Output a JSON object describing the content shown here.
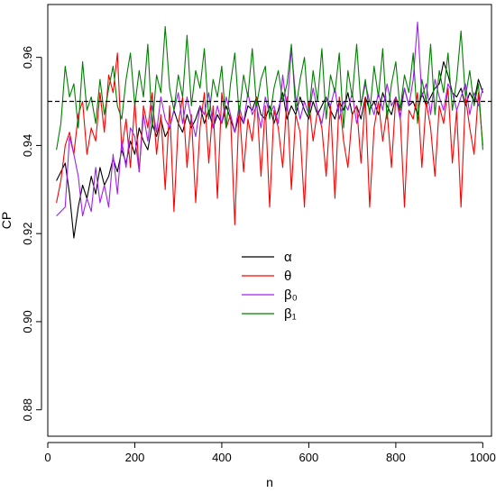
{
  "chart_data": {
    "type": "line",
    "title": "",
    "xlabel": "n",
    "ylabel": "CP",
    "xlim": [
      0,
      1020
    ],
    "ylim": [
      0.874,
      0.972
    ],
    "xticks": [
      0,
      200,
      400,
      600,
      800,
      1000
    ],
    "xtick_labels": [
      "0",
      "200",
      "400",
      "600",
      "800",
      "1000"
    ],
    "yticks": [
      0.88,
      0.9,
      0.92,
      0.94,
      0.96
    ],
    "ytick_labels": [
      "0.88",
      "0.90",
      "0.92",
      "0.94",
      "0.96"
    ],
    "grid": false,
    "legend_position": "center-left",
    "reference_line": {
      "y": 0.95,
      "style": "dashed",
      "color": "#000000"
    },
    "x": [
      20,
      30,
      40,
      50,
      60,
      70,
      80,
      90,
      100,
      110,
      120,
      130,
      140,
      150,
      160,
      170,
      180,
      190,
      200,
      210,
      220,
      230,
      240,
      250,
      260,
      270,
      280,
      290,
      300,
      310,
      320,
      330,
      340,
      350,
      360,
      370,
      380,
      390,
      400,
      410,
      420,
      430,
      440,
      450,
      460,
      470,
      480,
      490,
      500,
      510,
      520,
      530,
      540,
      550,
      560,
      570,
      580,
      590,
      600,
      610,
      620,
      630,
      640,
      650,
      660,
      670,
      680,
      690,
      700,
      710,
      720,
      730,
      740,
      750,
      760,
      770,
      780,
      790,
      800,
      810,
      820,
      830,
      840,
      850,
      860,
      870,
      880,
      890,
      900,
      910,
      920,
      930,
      940,
      950,
      960,
      970,
      980,
      990,
      1000
    ],
    "series": [
      {
        "name": "α",
        "color": "#000000",
        "values": [
          0.932,
          0.934,
          0.936,
          0.929,
          0.919,
          0.926,
          0.931,
          0.928,
          0.933,
          0.929,
          0.935,
          0.931,
          0.933,
          0.937,
          0.934,
          0.939,
          0.936,
          0.941,
          0.938,
          0.944,
          0.941,
          0.939,
          0.945,
          0.942,
          0.946,
          0.942,
          0.944,
          0.948,
          0.945,
          0.943,
          0.947,
          0.944,
          0.946,
          0.949,
          0.945,
          0.948,
          0.944,
          0.947,
          0.945,
          0.949,
          0.946,
          0.943,
          0.947,
          0.945,
          0.949,
          0.948,
          0.951,
          0.947,
          0.946,
          0.949,
          0.945,
          0.948,
          0.952,
          0.946,
          0.949,
          0.947,
          0.951,
          0.948,
          0.946,
          0.95,
          0.947,
          0.949,
          0.951,
          0.948,
          0.946,
          0.95,
          0.948,
          0.952,
          0.947,
          0.949,
          0.946,
          0.951,
          0.948,
          0.95,
          0.947,
          0.952,
          0.949,
          0.947,
          0.951,
          0.948,
          0.953,
          0.949,
          0.95,
          0.947,
          0.952,
          0.949,
          0.951,
          0.953,
          0.954,
          0.959,
          0.956,
          0.952,
          0.951,
          0.953,
          0.949,
          0.952,
          0.95,
          0.955,
          0.952
        ]
      },
      {
        "name": "θ",
        "color": "#ff0000",
        "values": [
          0.927,
          0.932,
          0.94,
          0.943,
          0.938,
          0.947,
          0.95,
          0.938,
          0.944,
          0.941,
          0.952,
          0.943,
          0.956,
          0.952,
          0.961,
          0.939,
          0.946,
          0.935,
          0.95,
          0.934,
          0.949,
          0.944,
          0.952,
          0.938,
          0.947,
          0.93,
          0.949,
          0.925,
          0.945,
          0.951,
          0.935,
          0.947,
          0.927,
          0.944,
          0.952,
          0.936,
          0.949,
          0.928,
          0.952,
          0.944,
          0.947,
          0.922,
          0.949,
          0.934,
          0.946,
          0.941,
          0.951,
          0.933,
          0.949,
          0.926,
          0.948,
          0.944,
          0.935,
          0.951,
          0.93,
          0.947,
          0.943,
          0.926,
          0.95,
          0.941,
          0.948,
          0.944,
          0.933,
          0.949,
          0.928,
          0.951,
          0.941,
          0.935,
          0.947,
          0.949,
          0.936,
          0.951,
          0.926,
          0.944,
          0.95,
          0.941,
          0.948,
          0.935,
          0.951,
          0.947,
          0.926,
          0.948,
          0.946,
          0.952,
          0.935,
          0.95,
          0.944,
          0.933,
          0.949,
          0.945,
          0.953,
          0.936,
          0.948,
          0.926,
          0.951,
          0.944,
          0.938,
          0.952,
          0.94
        ]
      },
      {
        "name": "β₀",
        "color": "#a020f0",
        "values": [
          0.924,
          0.925,
          0.926,
          0.942,
          0.938,
          0.933,
          0.924,
          0.928,
          0.925,
          0.935,
          0.927,
          0.931,
          0.926,
          0.938,
          0.929,
          0.941,
          0.935,
          0.944,
          0.942,
          0.934,
          0.947,
          0.941,
          0.949,
          0.943,
          0.951,
          0.946,
          0.944,
          0.948,
          0.952,
          0.945,
          0.951,
          0.946,
          0.942,
          0.949,
          0.947,
          0.952,
          0.944,
          0.949,
          0.945,
          0.951,
          0.947,
          0.943,
          0.949,
          0.945,
          0.952,
          0.947,
          0.949,
          0.944,
          0.951,
          0.947,
          0.949,
          0.945,
          0.956,
          0.948,
          0.962,
          0.951,
          0.946,
          0.95,
          0.947,
          0.953,
          0.948,
          0.945,
          0.951,
          0.949,
          0.953,
          0.946,
          0.95,
          0.948,
          0.952,
          0.945,
          0.949,
          0.954,
          0.95,
          0.947,
          0.952,
          0.948,
          0.954,
          0.949,
          0.951,
          0.946,
          0.953,
          0.949,
          0.955,
          0.968,
          0.951,
          0.954,
          0.947,
          0.955,
          0.951,
          0.948,
          0.954,
          0.952,
          0.948,
          0.951,
          0.954,
          0.947,
          0.952,
          0.949,
          0.953
        ]
      },
      {
        "name": "β₁",
        "color": "#008000",
        "values": [
          0.939,
          0.945,
          0.958,
          0.951,
          0.954,
          0.944,
          0.959,
          0.948,
          0.951,
          0.945,
          0.955,
          0.947,
          0.953,
          0.958,
          0.949,
          0.946,
          0.955,
          0.961,
          0.949,
          0.957,
          0.951,
          0.963,
          0.944,
          0.956,
          0.952,
          0.967,
          0.953,
          0.948,
          0.956,
          0.951,
          0.965,
          0.949,
          0.957,
          0.953,
          0.962,
          0.946,
          0.955,
          0.951,
          0.958,
          0.944,
          0.954,
          0.961,
          0.947,
          0.956,
          0.951,
          0.962,
          0.949,
          0.955,
          0.958,
          0.946,
          0.953,
          0.957,
          0.95,
          0.954,
          0.963,
          0.948,
          0.955,
          0.96,
          0.947,
          0.957,
          0.95,
          0.962,
          0.946,
          0.956,
          0.952,
          0.961,
          0.944,
          0.957,
          0.951,
          0.963,
          0.949,
          0.955,
          0.947,
          0.958,
          0.951,
          0.962,
          0.946,
          0.954,
          0.959,
          0.948,
          0.956,
          0.952,
          0.961,
          0.945,
          0.955,
          0.95,
          0.963,
          0.947,
          0.957,
          0.952,
          0.961,
          0.948,
          0.955,
          0.966,
          0.951,
          0.957,
          0.949,
          0.954,
          0.939
        ]
      }
    ]
  }
}
